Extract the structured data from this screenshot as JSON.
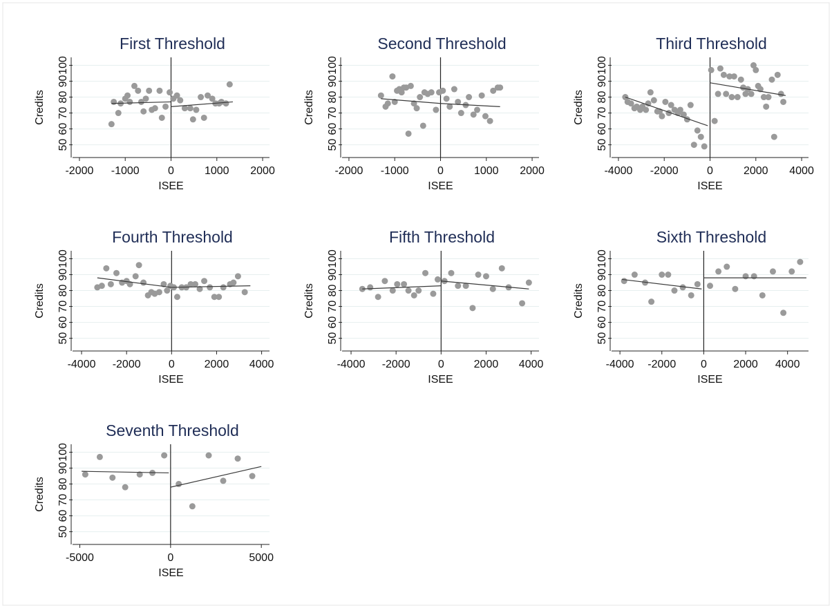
{
  "chart_data": [
    {
      "type": "scatter",
      "title": "First Threshold",
      "xlabel": "ISEE",
      "ylabel": "Credits",
      "color": "#9a9a9a",
      "line_color": "#3a3a3a",
      "grid": true,
      "xline": 0,
      "xlim": [
        -2150,
        2150
      ],
      "xticks": [
        -2000,
        -1000,
        0,
        1000,
        2000
      ],
      "ylim": [
        42,
        105
      ],
      "yticks": [
        50,
        60,
        70,
        80,
        90,
        100
      ],
      "x": [
        -1300,
        -1250,
        -1150,
        -1100,
        -1000,
        -950,
        -900,
        -800,
        -720,
        -650,
        -600,
        -550,
        -480,
        -420,
        -350,
        -250,
        -200,
        -120,
        -30,
        50,
        130,
        200,
        300,
        420,
        480,
        550,
        650,
        720,
        800,
        900,
        970,
        1050,
        1100,
        1200,
        1280
      ],
      "y": [
        63,
        77,
        70,
        76,
        79,
        81,
        77,
        87,
        84,
        77,
        71,
        79,
        84,
        72,
        73,
        84,
        67,
        74,
        83,
        79,
        81,
        78,
        73,
        73,
        66,
        72,
        80,
        67,
        81,
        79,
        76,
        76,
        77,
        76,
        88
      ],
      "fits": [
        {
          "x": [
            -1300,
            0
          ],
          "y": [
            76,
            77
          ]
        },
        {
          "x": [
            0,
            1350
          ],
          "y": [
            74,
            77
          ]
        }
      ]
    },
    {
      "type": "scatter",
      "title": "Second Threshold",
      "xlabel": "ISEE",
      "ylabel": "Credits",
      "color": "#9a9a9a",
      "line_color": "#3a3a3a",
      "grid": true,
      "xline": 0,
      "xlim": [
        -2150,
        2150
      ],
      "xticks": [
        -2000,
        -1000,
        0,
        1000,
        2000
      ],
      "ylim": [
        42,
        105
      ],
      "yticks": [
        50,
        60,
        70,
        80,
        90,
        100
      ],
      "x": [
        -1300,
        -1200,
        -1150,
        -1050,
        -1000,
        -950,
        -900,
        -850,
        -800,
        -750,
        -700,
        -650,
        -580,
        -520,
        -450,
        -380,
        -350,
        -280,
        -200,
        -100,
        -30,
        50,
        130,
        200,
        300,
        380,
        450,
        550,
        620,
        720,
        800,
        900,
        980,
        1080,
        1150,
        1250,
        1300
      ],
      "y": [
        81,
        74,
        76,
        93,
        77,
        84,
        85,
        83,
        86,
        86,
        57,
        87,
        76,
        73,
        80,
        62,
        83,
        82,
        83,
        72,
        83,
        84,
        79,
        74,
        85,
        77,
        70,
        75,
        80,
        69,
        72,
        81,
        68,
        65,
        84,
        86,
        86
      ],
      "fits": [
        {
          "x": [
            -1300,
            0
          ],
          "y": [
            79,
            76
          ]
        },
        {
          "x": [
            0,
            1300
          ],
          "y": [
            76,
            74
          ]
        }
      ]
    },
    {
      "type": "scatter",
      "title": "Third Threshold",
      "xlabel": "ISEE",
      "ylabel": "Credits",
      "color": "#9a9a9a",
      "line_color": "#3a3a3a",
      "grid": true,
      "xline": 0,
      "xlim": [
        -4300,
        4300
      ],
      "xticks": [
        -4000,
        -2000,
        0,
        2000,
        4000
      ],
      "ylim": [
        42,
        105
      ],
      "yticks": [
        50,
        60,
        70,
        80,
        90,
        100
      ],
      "x": [
        -3700,
        -3600,
        -3450,
        -3300,
        -3200,
        -3050,
        -2950,
        -2800,
        -2700,
        -2600,
        -2450,
        -2300,
        -2200,
        -2100,
        -1950,
        -1800,
        -1700,
        -1550,
        -1400,
        -1300,
        -1150,
        -1000,
        -850,
        -700,
        -550,
        -400,
        -250,
        50,
        200,
        350,
        450,
        600,
        700,
        850,
        950,
        1050,
        1200,
        1350,
        1450,
        1550,
        1650,
        1800,
        1900,
        2000,
        2100,
        2200,
        2350,
        2450,
        2550,
        2700,
        2800,
        2950,
        3100,
        3200
      ],
      "y": [
        80,
        77,
        76,
        73,
        74,
        72,
        74,
        72,
        76,
        83,
        78,
        71,
        71,
        68,
        77,
        70,
        75,
        72,
        70,
        72,
        69,
        66,
        75,
        50,
        59,
        55,
        49,
        97,
        65,
        82,
        98,
        94,
        82,
        93,
        80,
        93,
        80,
        91,
        86,
        82,
        85,
        82,
        100,
        97,
        87,
        85,
        80,
        74,
        80,
        91,
        55,
        94,
        82,
        77
      ],
      "fits": [
        {
          "x": [
            -3700,
            -100
          ],
          "y": [
            80,
            62
          ]
        },
        {
          "x": [
            0,
            3300
          ],
          "y": [
            89,
            81
          ]
        }
      ]
    },
    {
      "type": "scatter",
      "title": "Fourth Threshold",
      "xlabel": "ISEE",
      "ylabel": "Credits",
      "color": "#9a9a9a",
      "line_color": "#3a3a3a",
      "grid": true,
      "xline": 0,
      "xlim": [
        -4400,
        4350
      ],
      "xticks": [
        -4000,
        -2000,
        0,
        2000,
        4000
      ],
      "ylim": [
        42,
        105
      ],
      "yticks": [
        50,
        60,
        70,
        80,
        90,
        100
      ],
      "x": [
        -3300,
        -3100,
        -2900,
        -2700,
        -2450,
        -2200,
        -2000,
        -1850,
        -1600,
        -1450,
        -1250,
        -1050,
        -900,
        -750,
        -550,
        -350,
        -200,
        -50,
        100,
        250,
        450,
        650,
        850,
        1050,
        1250,
        1450,
        1700,
        1900,
        2100,
        2300,
        2600,
        2750,
        2950,
        3250
      ],
      "y": [
        82,
        83,
        94,
        84,
        91,
        85,
        86,
        84,
        89,
        96,
        85,
        77,
        79,
        78,
        79,
        84,
        80,
        83,
        82,
        76,
        82,
        82,
        84,
        84,
        81,
        86,
        82,
        76,
        76,
        82,
        84,
        85,
        89,
        79
      ],
      "fits": [
        {
          "x": [
            -3300,
            0
          ],
          "y": [
            88,
            82
          ]
        },
        {
          "x": [
            0,
            3500
          ],
          "y": [
            82,
            83
          ]
        }
      ]
    },
    {
      "type": "scatter",
      "title": "Fifth Threshold",
      "xlabel": "ISEE",
      "ylabel": "Credits",
      "color": "#9a9a9a",
      "line_color": "#3a3a3a",
      "grid": true,
      "xline": 0,
      "xlim": [
        -4400,
        4350
      ],
      "xticks": [
        -4000,
        -2000,
        0,
        2000,
        4000
      ],
      "ylim": [
        42,
        105
      ],
      "yticks": [
        50,
        60,
        70,
        80,
        90,
        100
      ],
      "x": [
        -3500,
        -3150,
        -2800,
        -2500,
        -2150,
        -1950,
        -1650,
        -1450,
        -1200,
        -1000,
        -700,
        -350,
        -150,
        150,
        450,
        750,
        1100,
        1400,
        1650,
        2000,
        2300,
        2700,
        3000,
        3600,
        3900
      ],
      "y": [
        81,
        82,
        76,
        86,
        80,
        84,
        84,
        80,
        77,
        80,
        91,
        78,
        87,
        86,
        91,
        83,
        83,
        69,
        90,
        89,
        81,
        94,
        82,
        72,
        85
      ],
      "fits": [
        {
          "x": [
            -3500,
            0
          ],
          "y": [
            81,
            83
          ]
        },
        {
          "x": [
            0,
            3900
          ],
          "y": [
            86,
            81
          ]
        }
      ]
    },
    {
      "type": "scatter",
      "title": "Sixth Threshold",
      "xlabel": "ISEE",
      "ylabel": "Credits",
      "color": "#9a9a9a",
      "line_color": "#3a3a3a",
      "grid": true,
      "xline": 0,
      "xlim": [
        -4400,
        5000
      ],
      "xticks": [
        -4000,
        -2000,
        0,
        2000,
        4000
      ],
      "ylim": [
        42,
        105
      ],
      "yticks": [
        50,
        60,
        70,
        80,
        90,
        100
      ],
      "x": [
        -3800,
        -3300,
        -2800,
        -2500,
        -2000,
        -1700,
        -1400,
        -1000,
        -600,
        -300,
        300,
        700,
        1100,
        1500,
        2000,
        2400,
        2800,
        3300,
        3800,
        4200,
        4600
      ],
      "y": [
        86,
        90,
        85,
        73,
        90,
        90,
        80,
        82,
        77,
        84,
        83,
        92,
        95,
        81,
        89,
        89,
        77,
        92,
        66,
        92,
        98
      ],
      "fits": [
        {
          "x": [
            -3900,
            -100
          ],
          "y": [
            87,
            81
          ]
        },
        {
          "x": [
            0,
            4900
          ],
          "y": [
            88,
            88
          ]
        }
      ]
    },
    {
      "type": "scatter",
      "title": "Seventh Threshold",
      "xlabel": "ISEE",
      "ylabel": "Credits",
      "color": "#9a9a9a",
      "line_color": "#3a3a3a",
      "grid": true,
      "xline": 0,
      "xlim": [
        -5400,
        5450
      ],
      "xticks": [
        -5000,
        0,
        5000
      ],
      "ylim": [
        42,
        105
      ],
      "yticks": [
        50,
        60,
        70,
        80,
        90,
        100
      ],
      "x": [
        -4700,
        -3900,
        -3200,
        -2500,
        -1700,
        -1000,
        -350,
        450,
        1200,
        2100,
        2900,
        3700,
        4500
      ],
      "y": [
        86,
        97,
        84,
        78,
        86,
        87,
        98,
        80,
        66,
        98,
        82,
        96,
        85
      ],
      "fits": [
        {
          "x": [
            -4900,
            -100
          ],
          "y": [
            88,
            87
          ]
        },
        {
          "x": [
            0,
            5000
          ],
          "y": [
            78,
            91
          ]
        }
      ]
    }
  ]
}
